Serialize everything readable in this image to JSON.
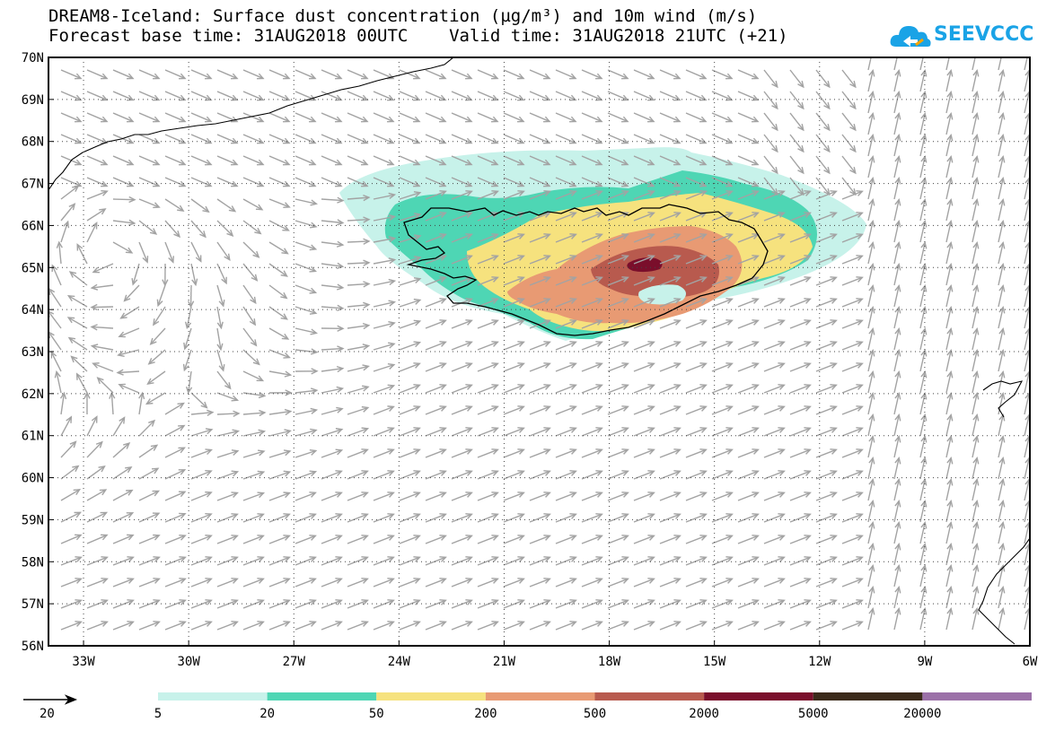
{
  "title": {
    "line1": "DREAM8-Iceland: Surface dust concentration (µg/m³) and 10m wind (m/s)",
    "line2": "Forecast base time: 31AUG2018 00UTC    Valid time: 31AUG2018 21UTC (+21)"
  },
  "logo": {
    "text": "SEEVCCC",
    "color": "#1aa3e6"
  },
  "map": {
    "lat_labels": [
      "70N",
      "69N",
      "68N",
      "67N",
      "66N",
      "65N",
      "64N",
      "63N",
      "62N",
      "61N",
      "60N",
      "59N",
      "58N",
      "57N",
      "56N"
    ],
    "lon_labels": [
      "33W",
      "30W",
      "27W",
      "24W",
      "21W",
      "18W",
      "15W",
      "12W",
      "9W",
      "6W"
    ],
    "lat_range": [
      56,
      70
    ],
    "lon_range": [
      -34.0,
      -6.0
    ]
  },
  "wind_reference": {
    "value": "20"
  },
  "colorbar": {
    "labels": [
      "5",
      "20",
      "50",
      "200",
      "500",
      "2000",
      "5000",
      "20000"
    ],
    "colors": [
      "#c7f2ea",
      "#4ed6b4",
      "#f6e27e",
      "#e89a73",
      "#b85a4e",
      "#7a0e2b",
      "#3b2a1a",
      "#9b70a8"
    ]
  },
  "dust_colors": {
    "c5": "#c7f2ea",
    "c20": "#4ed6b4",
    "c50": "#f6e27e",
    "c200": "#e89a73",
    "c500": "#b85a4e",
    "c2000": "#7a0e2b"
  }
}
